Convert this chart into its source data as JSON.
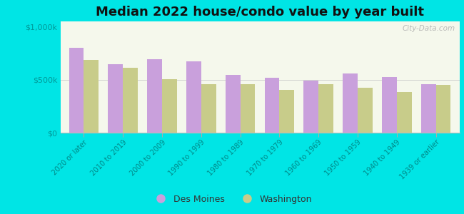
{
  "title": "Median 2022 house/condo value by year built",
  "categories": [
    "2020 or later",
    "2010 to 2019",
    "2000 to 2009",
    "1990 to 1999",
    "1980 to 1989",
    "1970 to 1979",
    "1960 to 1969",
    "1950 to 1959",
    "1940 to 1949",
    "1939 or earlier"
  ],
  "des_moines": [
    800000,
    645000,
    695000,
    670000,
    545000,
    520000,
    490000,
    560000,
    525000,
    460000
  ],
  "washington": [
    685000,
    615000,
    505000,
    455000,
    455000,
    405000,
    460000,
    425000,
    385000,
    450000
  ],
  "color_des_moines": "#c9a0dc",
  "color_washington": "#c8cc8a",
  "background_outer": "#00e5e5",
  "background_plot_top": "#f5f8ec",
  "background_plot_bottom": "#e8f0d8",
  "yticks": [
    0,
    500000,
    1000000
  ],
  "ytick_labels": [
    "$0",
    "$500k",
    "$1,000k"
  ],
  "ylim": [
    0,
    1050000
  ],
  "legend_labels": [
    "Des Moines",
    "Washington"
  ],
  "title_fontsize": 13,
  "watermark": "City-Data.com",
  "tick_color": "#009999",
  "label_color": "#008888"
}
